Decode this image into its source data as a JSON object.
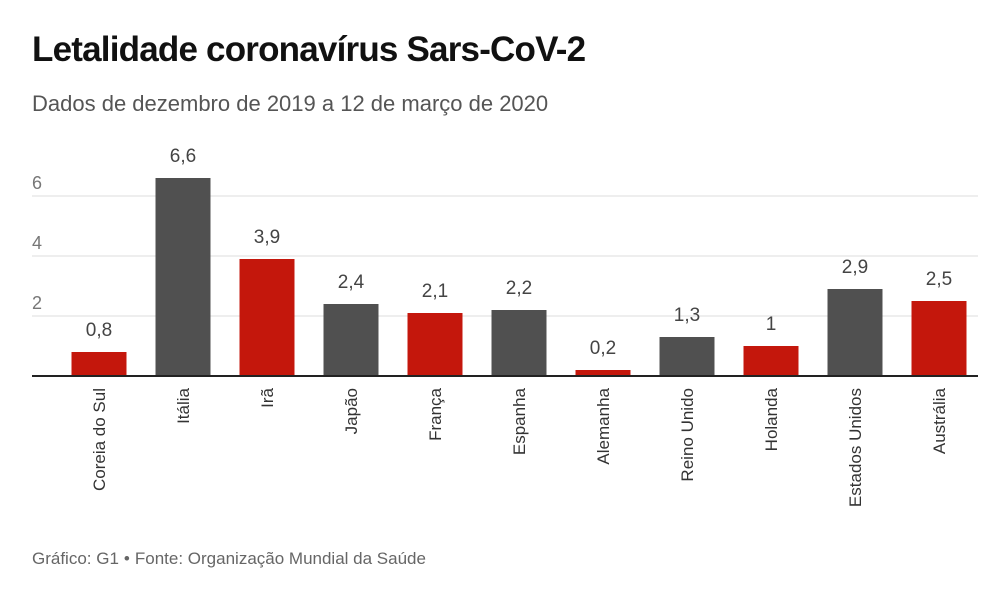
{
  "header": {
    "title": "Letalidade coronavírus Sars-CoV-2",
    "subtitle": "Dados de dezembro de 2019 a 12 de março de 2020"
  },
  "footer": {
    "credit": "Gráfico: G1",
    "separator": "•",
    "source": "Fonte: Organização Mundial da Saúde"
  },
  "colors": {
    "gray": "#505050",
    "red": "#c4170c",
    "grid": "#dddddd",
    "axis": "#222222"
  },
  "chart_data": {
    "type": "bar",
    "title": "Letalidade coronavírus Sars-CoV-2",
    "subtitle": "Dados de dezembro de 2019 a 12 de março de 2020",
    "xlabel": "",
    "ylabel": "",
    "ylim": [
      0,
      7
    ],
    "yticks": [
      2,
      4,
      6
    ],
    "grid": true,
    "categories": [
      "Coreia do Sul",
      "Itália",
      "Irã",
      "Japão",
      "França",
      "Espanha",
      "Alemanha",
      "Reino Unido",
      "Holanda",
      "Estados Unidos",
      "Austrália"
    ],
    "values": [
      0.8,
      6.6,
      3.9,
      2.4,
      2.1,
      2.2,
      0.2,
      1.3,
      1,
      2.9,
      2.5
    ],
    "value_labels": [
      "0,8",
      "6,6",
      "3,9",
      "2,4",
      "2,1",
      "2,2",
      "0,2",
      "1,3",
      "1",
      "2,9",
      "2,5"
    ],
    "bar_colors": [
      "red",
      "gray",
      "red",
      "gray",
      "red",
      "gray",
      "red",
      "gray",
      "red",
      "gray",
      "red"
    ]
  }
}
